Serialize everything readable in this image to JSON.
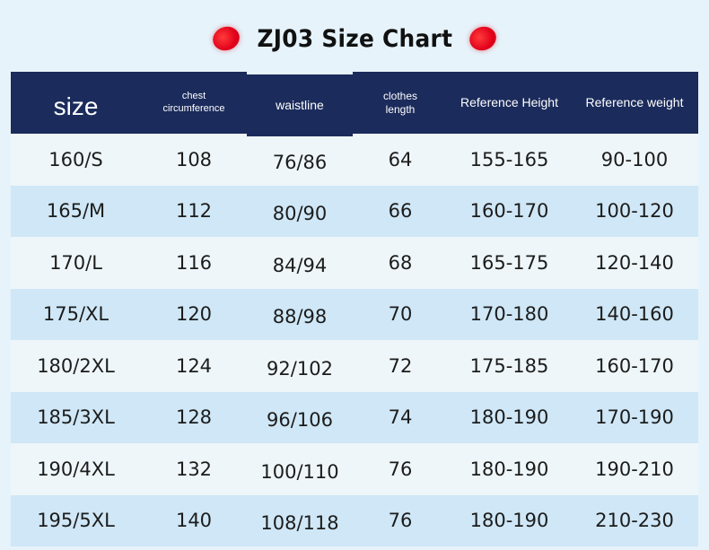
{
  "title": "ZJ03 Size Chart",
  "colors": {
    "header_bg": "#1b2b5b",
    "row_light": "#eef6f9",
    "row_blue": "#cfe7f6",
    "dot": "#e1001a"
  },
  "icons": {
    "left": "red-dot-icon",
    "right": "red-dot-icon"
  },
  "headers": {
    "size": "size",
    "chest_line1": "chest",
    "chest_line2": "circumference",
    "waistline": "waistline",
    "length_line1": "clothes",
    "length_line2": "length",
    "height": "Reference Height",
    "weight": "Reference weight"
  },
  "rows": [
    {
      "size": "160/S",
      "chest": "108",
      "waist": "76/86",
      "length": "64",
      "height": "155-165",
      "weight": "90-100"
    },
    {
      "size": "165/M",
      "chest": "112",
      "waist": "80/90",
      "length": "66",
      "height": "160-170",
      "weight": "100-120"
    },
    {
      "size": "170/L",
      "chest": "116",
      "waist": "84/94",
      "length": "68",
      "height": "165-175",
      "weight": "120-140"
    },
    {
      "size": "175/XL",
      "chest": "120",
      "waist": "88/98",
      "length": "70",
      "height": "170-180",
      "weight": "140-160"
    },
    {
      "size": "180/2XL",
      "chest": "124",
      "waist": "92/102",
      "length": "72",
      "height": "175-185",
      "weight": "160-170"
    },
    {
      "size": "185/3XL",
      "chest": "128",
      "waist": "96/106",
      "length": "74",
      "height": "180-190",
      "weight": "170-190"
    },
    {
      "size": "190/4XL",
      "chest": "132",
      "waist": "100/110",
      "length": "76",
      "height": "180-190",
      "weight": "190-210"
    },
    {
      "size": "195/5XL",
      "chest": "140",
      "waist": "108/118",
      "length": "76",
      "height": "180-190",
      "weight": "210-230"
    }
  ]
}
